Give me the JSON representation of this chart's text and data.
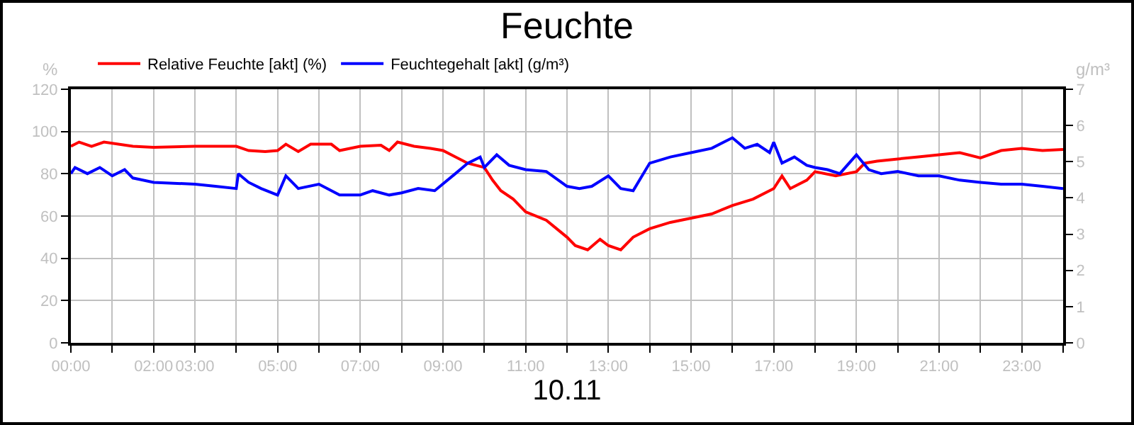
{
  "chart_data": {
    "type": "line",
    "title": "Feuchte",
    "xlabel": "10.11",
    "ylabel": "%",
    "y2label": "g/m³",
    "xlim": [
      0,
      24
    ],
    "xticks": [
      {
        "value": 0,
        "label": "00:00"
      },
      {
        "value": 1,
        "label": null
      },
      {
        "value": 2,
        "label": "02:00"
      },
      {
        "value": 3,
        "label": "03:00"
      },
      {
        "value": 4,
        "label": null
      },
      {
        "value": 5,
        "label": "05:00"
      },
      {
        "value": 6,
        "label": null
      },
      {
        "value": 7,
        "label": "07:00"
      },
      {
        "value": 8,
        "label": null
      },
      {
        "value": 9,
        "label": "09:00"
      },
      {
        "value": 10,
        "label": null
      },
      {
        "value": 11,
        "label": "11:00"
      },
      {
        "value": 12,
        "label": null
      },
      {
        "value": 13,
        "label": "13:00"
      },
      {
        "value": 14,
        "label": null
      },
      {
        "value": 15,
        "label": "15:00"
      },
      {
        "value": 16,
        "label": null
      },
      {
        "value": 17,
        "label": "17:00"
      },
      {
        "value": 18,
        "label": null
      },
      {
        "value": 19,
        "label": "19:00"
      },
      {
        "value": 20,
        "label": null
      },
      {
        "value": 21,
        "label": "21:00"
      },
      {
        "value": 22,
        "label": null
      },
      {
        "value": 23,
        "label": "23:00"
      },
      {
        "value": 24,
        "label": null
      }
    ],
    "ylim": [
      0,
      120
    ],
    "yticks": [
      0,
      20,
      40,
      60,
      80,
      100,
      120
    ],
    "y2lim": [
      0,
      7
    ],
    "y2ticks": [
      0,
      1,
      2,
      3,
      4,
      5,
      6,
      7
    ],
    "grid": true,
    "legend": "top left",
    "marker": "none",
    "line_style": "solid",
    "series": [
      {
        "name": "Relative Feuchte [akt] (%)",
        "color": "#ff0000",
        "x": [
          0,
          0.2,
          0.5,
          0.8,
          1.5,
          2,
          3,
          4,
          4.3,
          4.7,
          5,
          5.2,
          5.5,
          5.8,
          6.3,
          6.5,
          7,
          7.5,
          7.7,
          7.9,
          8.3,
          8.7,
          9,
          9.3,
          9.6,
          10,
          10.2,
          10.4,
          10.7,
          11,
          11.5,
          12,
          12.2,
          12.5,
          12.8,
          13,
          13.3,
          13.6,
          14,
          14.5,
          15,
          15.5,
          16,
          16.5,
          17,
          17.2,
          17.4,
          17.8,
          18,
          18.5,
          19,
          19.2,
          19.5,
          20,
          20.5,
          21,
          21.5,
          22,
          22.5,
          23,
          23.5,
          24
        ],
        "values": [
          93,
          95,
          93,
          95,
          93,
          92.5,
          93,
          93,
          91,
          90.5,
          91,
          94,
          90.5,
          94,
          94,
          91,
          93,
          93.5,
          91,
          95,
          93,
          92,
          91,
          88,
          85,
          83,
          77,
          72,
          68,
          62,
          58,
          50,
          46,
          44,
          49,
          46,
          44,
          50,
          54,
          57,
          59,
          61,
          65,
          68,
          73,
          79,
          73,
          77,
          81,
          79,
          81,
          85,
          86,
          87,
          88,
          89,
          90,
          87.5,
          91,
          92,
          91,
          91.5
        ]
      },
      {
        "name": "Feuchtegehalt [akt] (g/m³)",
        "color": "#0000ff",
        "axis": "y2",
        "x": [
          0,
          0.1,
          0.4,
          0.7,
          1,
          1.3,
          1.5,
          2,
          3,
          3.5,
          4,
          4.05,
          4.3,
          4.6,
          5,
          5.2,
          5.5,
          6,
          6.5,
          7,
          7.3,
          7.7,
          8,
          8.4,
          8.8,
          9.3,
          9.6,
          9.9,
          10,
          10.3,
          10.6,
          11,
          11.5,
          12,
          12.3,
          12.6,
          13,
          13.3,
          13.6,
          14,
          14.5,
          15,
          15.5,
          16,
          16.3,
          16.6,
          16.9,
          17,
          17.2,
          17.5,
          17.8,
          18,
          18.3,
          18.6,
          19,
          19.3,
          19.6,
          20,
          20.5,
          21,
          21.5,
          22,
          22.5,
          23,
          23.5,
          24
        ],
        "values": [
          4.67,
          4.84,
          4.67,
          4.84,
          4.61,
          4.78,
          4.55,
          4.43,
          4.38,
          4.32,
          4.26,
          4.67,
          4.43,
          4.26,
          4.08,
          4.61,
          4.26,
          4.38,
          4.08,
          4.08,
          4.2,
          4.08,
          4.14,
          4.26,
          4.2,
          4.67,
          4.96,
          5.13,
          4.84,
          5.19,
          4.9,
          4.78,
          4.73,
          4.32,
          4.26,
          4.32,
          4.61,
          4.26,
          4.2,
          4.96,
          5.13,
          5.25,
          5.37,
          5.66,
          5.37,
          5.48,
          5.25,
          5.54,
          4.96,
          5.13,
          4.9,
          4.84,
          4.78,
          4.67,
          5.19,
          4.78,
          4.67,
          4.73,
          4.61,
          4.61,
          4.49,
          4.43,
          4.38,
          4.38,
          4.32,
          4.26
        ]
      }
    ]
  }
}
